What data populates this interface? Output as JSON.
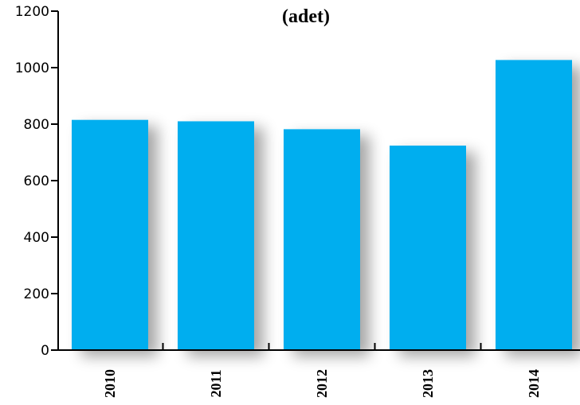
{
  "chart_data": {
    "type": "bar",
    "title": "(adet)",
    "xlabel": "",
    "ylabel": "",
    "categories": [
      "2010",
      "2011",
      "2012",
      "2013",
      "2014"
    ],
    "values": [
      815,
      810,
      782,
      724,
      1027
    ],
    "ylim": [
      0,
      1200
    ],
    "yticks": [
      0,
      200,
      400,
      600,
      800,
      1000,
      1200
    ],
    "grid": false,
    "legend": "none",
    "colors": {
      "bar": "#00AEEF",
      "axis": "#000000"
    }
  }
}
